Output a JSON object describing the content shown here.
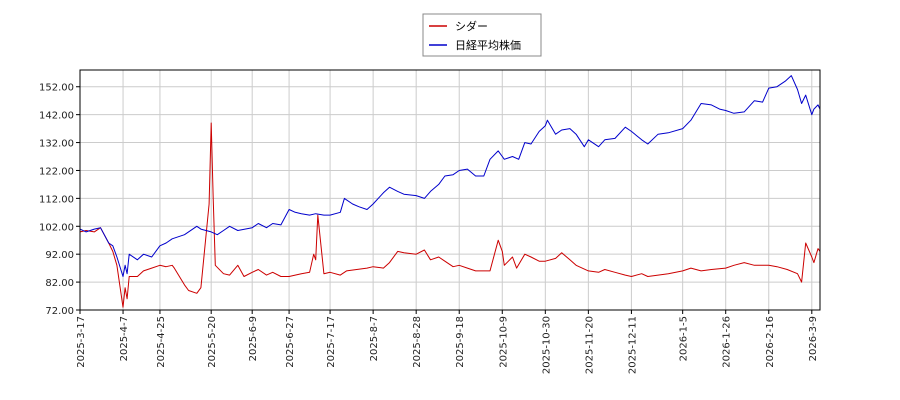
{
  "chart_data": {
    "type": "line",
    "title": "",
    "xlabel": "",
    "ylabel": "",
    "ylim": [
      72,
      158
    ],
    "yticks": [
      "72.00",
      "82.00",
      "92.00",
      "102.00",
      "112.00",
      "122.00",
      "132.00",
      "142.00",
      "152.00"
    ],
    "ytick_values": [
      72,
      82,
      92,
      102,
      112,
      122,
      132,
      142,
      152
    ],
    "xticks": [
      "2025-3-17",
      "2025-4-7",
      "2025-4-25",
      "2025-5-20",
      "2025-6-9",
      "2025-6-27",
      "2025-7-17",
      "2025-8-7",
      "2025-8-28",
      "2025-9-18",
      "2025-10-9",
      "2025-10-30",
      "2025-11-20",
      "2025-12-11",
      "2026-1-5",
      "2026-1-26",
      "2026-2-16",
      "2026-3-9"
    ],
    "x_range": [
      "2025-3-17",
      "2026-3-13"
    ],
    "grid": true,
    "legend_position": "top-center",
    "series": [
      {
        "name": "シダー",
        "color": "#cc0000",
        "points": [
          [
            "2025-03-17",
            100.0
          ],
          [
            "2025-03-20",
            100.5
          ],
          [
            "2025-03-24",
            100.0
          ],
          [
            "2025-03-27",
            101.5
          ],
          [
            "2025-03-31",
            96.0
          ],
          [
            "2025-04-02",
            93.0
          ],
          [
            "2025-04-04",
            88.0
          ],
          [
            "2025-04-07",
            73.0
          ],
          [
            "2025-04-08",
            80.0
          ],
          [
            "2025-04-09",
            76.0
          ],
          [
            "2025-04-10",
            84.0
          ],
          [
            "2025-04-14",
            84.0
          ],
          [
            "2025-04-17",
            86.0
          ],
          [
            "2025-04-21",
            87.0
          ],
          [
            "2025-04-25",
            88.0
          ],
          [
            "2025-04-28",
            87.5
          ],
          [
            "2025-05-01",
            88.0
          ],
          [
            "2025-05-02",
            87.0
          ],
          [
            "2025-05-07",
            81.0
          ],
          [
            "2025-05-09",
            79.0
          ],
          [
            "2025-05-13",
            78.0
          ],
          [
            "2025-05-15",
            80.0
          ],
          [
            "2025-05-19",
            110.0
          ],
          [
            "2025-05-20",
            139.0
          ],
          [
            "2025-05-21",
            112.0
          ],
          [
            "2025-05-22",
            88.0
          ],
          [
            "2025-05-26",
            85.0
          ],
          [
            "2025-05-29",
            84.5
          ],
          [
            "2025-06-02",
            88.0
          ],
          [
            "2025-06-05",
            84.0
          ],
          [
            "2025-06-09",
            85.5
          ],
          [
            "2025-06-12",
            86.5
          ],
          [
            "2025-06-16",
            84.5
          ],
          [
            "2025-06-19",
            85.5
          ],
          [
            "2025-06-23",
            84.0
          ],
          [
            "2025-06-27",
            84.0
          ],
          [
            "2025-06-30",
            84.5
          ],
          [
            "2025-07-03",
            85.0
          ],
          [
            "2025-07-07",
            85.5
          ],
          [
            "2025-07-09",
            92.0
          ],
          [
            "2025-07-10",
            90.0
          ],
          [
            "2025-07-11",
            106.0
          ],
          [
            "2025-07-14",
            85.0
          ],
          [
            "2025-07-17",
            85.5
          ],
          [
            "2025-07-22",
            84.5
          ],
          [
            "2025-07-25",
            86.0
          ],
          [
            "2025-07-30",
            86.5
          ],
          [
            "2025-08-04",
            87.0
          ],
          [
            "2025-08-07",
            87.5
          ],
          [
            "2025-08-12",
            87.0
          ],
          [
            "2025-08-15",
            89.0
          ],
          [
            "2025-08-19",
            93.0
          ],
          [
            "2025-08-22",
            92.5
          ],
          [
            "2025-08-28",
            92.0
          ],
          [
            "2025-09-01",
            93.5
          ],
          [
            "2025-09-04",
            90.0
          ],
          [
            "2025-09-08",
            91.0
          ],
          [
            "2025-09-11",
            89.5
          ],
          [
            "2025-09-15",
            87.5
          ],
          [
            "2025-09-18",
            88.0
          ],
          [
            "2025-09-22",
            87.0
          ],
          [
            "2025-09-26",
            86.0
          ],
          [
            "2025-09-30",
            86.0
          ],
          [
            "2025-10-03",
            86.0
          ],
          [
            "2025-10-07",
            97.0
          ],
          [
            "2025-10-09",
            93.0
          ],
          [
            "2025-10-10",
            88.0
          ],
          [
            "2025-10-14",
            91.0
          ],
          [
            "2025-10-16",
            87.0
          ],
          [
            "2025-10-20",
            92.0
          ],
          [
            "2025-10-23",
            91.0
          ],
          [
            "2025-10-27",
            89.5
          ],
          [
            "2025-10-30",
            89.5
          ],
          [
            "2025-11-04",
            90.5
          ],
          [
            "2025-11-07",
            92.5
          ],
          [
            "2025-11-11",
            90.0
          ],
          [
            "2025-11-14",
            88.0
          ],
          [
            "2025-11-20",
            86.0
          ],
          [
            "2025-11-25",
            85.5
          ],
          [
            "2025-11-28",
            86.5
          ],
          [
            "2025-12-03",
            85.5
          ],
          [
            "2025-12-08",
            84.5
          ],
          [
            "2025-12-11",
            84.0
          ],
          [
            "2025-12-16",
            85.0
          ],
          [
            "2025-12-19",
            84.0
          ],
          [
            "2025-12-24",
            84.5
          ],
          [
            "2025-12-29",
            85.0
          ],
          [
            "2026-01-05",
            86.0
          ],
          [
            "2026-01-09",
            87.0
          ],
          [
            "2026-01-14",
            86.0
          ],
          [
            "2026-01-19",
            86.5
          ],
          [
            "2026-01-26",
            87.0
          ],
          [
            "2026-01-30",
            88.0
          ],
          [
            "2026-02-04",
            89.0
          ],
          [
            "2026-02-09",
            88.0
          ],
          [
            "2026-02-16",
            88.0
          ],
          [
            "2026-02-20",
            87.5
          ],
          [
            "2026-02-25",
            86.5
          ],
          [
            "2026-03-02",
            85.0
          ],
          [
            "2026-03-04",
            82.0
          ],
          [
            "2026-03-06",
            96.0
          ],
          [
            "2026-03-09",
            91.0
          ],
          [
            "2026-03-10",
            89.0
          ],
          [
            "2026-03-12",
            94.0
          ],
          [
            "2026-03-13",
            93.0
          ]
        ]
      },
      {
        "name": "日経平均株価",
        "color": "#0000cc",
        "points": [
          [
            "2025-03-17",
            101.0
          ],
          [
            "2025-03-20",
            100.0
          ],
          [
            "2025-03-24",
            101.0
          ],
          [
            "2025-03-27",
            101.5
          ],
          [
            "2025-03-31",
            96.0
          ],
          [
            "2025-04-02",
            95.0
          ],
          [
            "2025-04-04",
            91.0
          ],
          [
            "2025-04-07",
            84.0
          ],
          [
            "2025-04-08",
            88.0
          ],
          [
            "2025-04-09",
            85.0
          ],
          [
            "2025-04-10",
            92.0
          ],
          [
            "2025-04-14",
            90.0
          ],
          [
            "2025-04-17",
            92.0
          ],
          [
            "2025-04-21",
            91.0
          ],
          [
            "2025-04-25",
            95.0
          ],
          [
            "2025-04-28",
            96.0
          ],
          [
            "2025-05-01",
            97.5
          ],
          [
            "2025-05-07",
            99.0
          ],
          [
            "2025-05-13",
            102.0
          ],
          [
            "2025-05-15",
            101.0
          ],
          [
            "2025-05-20",
            100.0
          ],
          [
            "2025-05-23",
            99.0
          ],
          [
            "2025-05-26",
            100.5
          ],
          [
            "2025-05-29",
            102.0
          ],
          [
            "2025-06-02",
            100.5
          ],
          [
            "2025-06-09",
            101.5
          ],
          [
            "2025-06-12",
            103.0
          ],
          [
            "2025-06-16",
            101.5
          ],
          [
            "2025-06-19",
            103.0
          ],
          [
            "2025-06-23",
            102.5
          ],
          [
            "2025-06-27",
            108.0
          ],
          [
            "2025-06-30",
            107.0
          ],
          [
            "2025-07-03",
            106.5
          ],
          [
            "2025-07-07",
            106.0
          ],
          [
            "2025-07-10",
            106.5
          ],
          [
            "2025-07-14",
            106.0
          ],
          [
            "2025-07-17",
            106.0
          ],
          [
            "2025-07-22",
            107.0
          ],
          [
            "2025-07-24",
            112.0
          ],
          [
            "2025-07-28",
            110.0
          ],
          [
            "2025-07-31",
            109.0
          ],
          [
            "2025-08-04",
            108.0
          ],
          [
            "2025-08-07",
            110.0
          ],
          [
            "2025-08-12",
            114.0
          ],
          [
            "2025-08-15",
            116.0
          ],
          [
            "2025-08-19",
            114.5
          ],
          [
            "2025-08-22",
            113.5
          ],
          [
            "2025-08-28",
            113.0
          ],
          [
            "2025-09-01",
            112.0
          ],
          [
            "2025-09-04",
            114.5
          ],
          [
            "2025-09-08",
            117.0
          ],
          [
            "2025-09-11",
            120.0
          ],
          [
            "2025-09-15",
            120.5
          ],
          [
            "2025-09-18",
            122.0
          ],
          [
            "2025-09-22",
            122.5
          ],
          [
            "2025-09-26",
            120.0
          ],
          [
            "2025-09-30",
            120.0
          ],
          [
            "2025-10-03",
            126.0
          ],
          [
            "2025-10-07",
            129.0
          ],
          [
            "2025-10-09",
            127.0
          ],
          [
            "2025-10-10",
            126.0
          ],
          [
            "2025-10-14",
            127.0
          ],
          [
            "2025-10-17",
            126.0
          ],
          [
            "2025-10-20",
            132.0
          ],
          [
            "2025-10-23",
            131.5
          ],
          [
            "2025-10-27",
            136.0
          ],
          [
            "2025-10-30",
            138.0
          ],
          [
            "2025-10-31",
            140.0
          ],
          [
            "2025-11-04",
            135.0
          ],
          [
            "2025-11-07",
            136.5
          ],
          [
            "2025-11-11",
            137.0
          ],
          [
            "2025-11-14",
            135.0
          ],
          [
            "2025-11-18",
            130.5
          ],
          [
            "2025-11-20",
            133.0
          ],
          [
            "2025-11-25",
            130.5
          ],
          [
            "2025-11-28",
            133.0
          ],
          [
            "2025-12-03",
            133.5
          ],
          [
            "2025-12-08",
            137.5
          ],
          [
            "2025-12-11",
            136.0
          ],
          [
            "2025-12-16",
            133.0
          ],
          [
            "2025-12-19",
            131.5
          ],
          [
            "2025-12-24",
            135.0
          ],
          [
            "2025-12-29",
            135.5
          ],
          [
            "2026-01-05",
            137.0
          ],
          [
            "2026-01-09",
            140.0
          ],
          [
            "2026-01-14",
            146.0
          ],
          [
            "2026-01-19",
            145.5
          ],
          [
            "2026-01-23",
            144.0
          ],
          [
            "2026-01-26",
            143.5
          ],
          [
            "2026-01-30",
            142.5
          ],
          [
            "2026-02-04",
            143.0
          ],
          [
            "2026-02-09",
            147.0
          ],
          [
            "2026-02-13",
            146.5
          ],
          [
            "2026-02-16",
            151.5
          ],
          [
            "2026-02-20",
            152.0
          ],
          [
            "2026-02-24",
            154.0
          ],
          [
            "2026-02-27",
            156.0
          ],
          [
            "2026-03-02",
            151.0
          ],
          [
            "2026-03-04",
            146.0
          ],
          [
            "2026-03-06",
            149.0
          ],
          [
            "2026-03-09",
            142.0
          ],
          [
            "2026-03-10",
            144.0
          ],
          [
            "2026-03-12",
            145.5
          ],
          [
            "2026-03-13",
            144.0
          ]
        ]
      }
    ]
  }
}
